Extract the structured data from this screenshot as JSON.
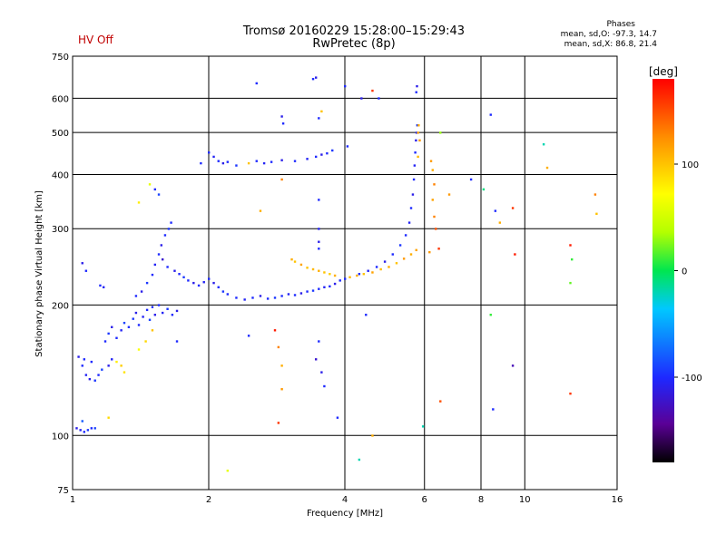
{
  "status": {
    "hv_label": "HV Off"
  },
  "header": {
    "title_line1": "Tromsø 20160229 15:28:00–15:29:43",
    "title_line2": "RwPretec (8p)"
  },
  "phases_box": {
    "title": "Phases",
    "line_o": "mean, sd,O: -97.3, 14.7",
    "line_x": "mean, sd,X:  86.8, 21.4"
  },
  "colorbar": {
    "unit_label": "[deg]",
    "tick_labels": [
      "100",
      "0",
      "-100"
    ],
    "tick_values": [
      100,
      0,
      -100
    ],
    "range": [
      -180,
      180
    ]
  },
  "chart_data": {
    "type": "scatter",
    "title": "Tromsø 20160229 15:28:00–15:29:43",
    "subtitle": "RwPretec (8p)",
    "xlabel": "Frequency [MHz]",
    "ylabel": "Stationary phase Virtual Height [km]",
    "x_scale": "log",
    "y_scale": "log",
    "xlim": [
      1,
      16
    ],
    "ylim": [
      75,
      750
    ],
    "x_ticks": [
      1,
      2,
      4,
      6,
      8,
      10,
      16
    ],
    "x_tick_labels": [
      "1",
      "2",
      "4",
      "6",
      "8",
      "10",
      "16"
    ],
    "y_ticks": [
      75,
      100,
      200,
      300,
      400,
      500,
      600,
      750
    ],
    "y_tick_labels": [
      "75",
      "100",
      "200",
      "300",
      "400",
      "500",
      "600",
      "750"
    ],
    "grid": true,
    "color_scale": "phase in degrees (rainbow, -180 to 180)",
    "points": [
      {
        "f": 1.02,
        "h": 104,
        "p": -110
      },
      {
        "f": 1.04,
        "h": 103,
        "p": -105
      },
      {
        "f": 1.06,
        "h": 102,
        "p": -100
      },
      {
        "f": 1.08,
        "h": 103,
        "p": -95
      },
      {
        "f": 1.1,
        "h": 104,
        "p": -100
      },
      {
        "f": 1.12,
        "h": 104,
        "p": -90
      },
      {
        "f": 1.05,
        "h": 108,
        "p": -80
      },
      {
        "f": 1.03,
        "h": 152,
        "p": -110
      },
      {
        "f": 1.05,
        "h": 145,
        "p": -100
      },
      {
        "f": 1.07,
        "h": 138,
        "p": -105
      },
      {
        "f": 1.09,
        "h": 135,
        "p": -110
      },
      {
        "f": 1.12,
        "h": 134,
        "p": -95
      },
      {
        "f": 1.14,
        "h": 138,
        "p": -100
      },
      {
        "f": 1.16,
        "h": 142,
        "p": -90
      },
      {
        "f": 1.1,
        "h": 148,
        "p": -100
      },
      {
        "f": 1.06,
        "h": 150,
        "p": -100
      },
      {
        "f": 1.2,
        "h": 145,
        "p": -110
      },
      {
        "f": 1.22,
        "h": 150,
        "p": -105
      },
      {
        "f": 1.18,
        "h": 165,
        "p": -100
      },
      {
        "f": 1.2,
        "h": 172,
        "p": -95
      },
      {
        "f": 1.22,
        "h": 178,
        "p": -110
      },
      {
        "f": 1.25,
        "h": 168,
        "p": -100
      },
      {
        "f": 1.28,
        "h": 175,
        "p": -105
      },
      {
        "f": 1.3,
        "h": 182,
        "p": -90
      },
      {
        "f": 1.33,
        "h": 178,
        "p": -100
      },
      {
        "f": 1.36,
        "h": 186,
        "p": -95
      },
      {
        "f": 1.38,
        "h": 192,
        "p": -110
      },
      {
        "f": 1.4,
        "h": 180,
        "p": -100
      },
      {
        "f": 1.43,
        "h": 188,
        "p": -105
      },
      {
        "f": 1.46,
        "h": 195,
        "p": -100
      },
      {
        "f": 1.48,
        "h": 185,
        "p": -90
      },
      {
        "f": 1.5,
        "h": 198,
        "p": -100
      },
      {
        "f": 1.52,
        "h": 190,
        "p": -110
      },
      {
        "f": 1.55,
        "h": 200,
        "p": -100
      },
      {
        "f": 1.58,
        "h": 192,
        "p": -105
      },
      {
        "f": 1.62,
        "h": 196,
        "p": -95
      },
      {
        "f": 1.66,
        "h": 190,
        "p": -100
      },
      {
        "f": 1.7,
        "h": 194,
        "p": -110
      },
      {
        "f": 1.25,
        "h": 148,
        "p": 80
      },
      {
        "f": 1.28,
        "h": 145,
        "p": 95
      },
      {
        "f": 1.3,
        "h": 140,
        "p": 85
      },
      {
        "f": 1.4,
        "h": 158,
        "p": 70
      },
      {
        "f": 1.45,
        "h": 165,
        "p": 90
      },
      {
        "f": 1.5,
        "h": 175,
        "p": 100
      },
      {
        "f": 1.2,
        "h": 110,
        "p": 90
      },
      {
        "f": 1.05,
        "h": 250,
        "p": -110
      },
      {
        "f": 1.07,
        "h": 240,
        "p": -100
      },
      {
        "f": 1.15,
        "h": 222,
        "p": -100
      },
      {
        "f": 1.17,
        "h": 220,
        "p": -105
      },
      {
        "f": 1.38,
        "h": 210,
        "p": -100
      },
      {
        "f": 1.42,
        "h": 215,
        "p": -110
      },
      {
        "f": 1.46,
        "h": 225,
        "p": -95
      },
      {
        "f": 1.5,
        "h": 235,
        "p": -100
      },
      {
        "f": 1.52,
        "h": 248,
        "p": -105
      },
      {
        "f": 1.55,
        "h": 262,
        "p": -100
      },
      {
        "f": 1.57,
        "h": 275,
        "p": -110
      },
      {
        "f": 1.6,
        "h": 290,
        "p": -100
      },
      {
        "f": 1.63,
        "h": 300,
        "p": -95
      },
      {
        "f": 1.65,
        "h": 310,
        "p": -100
      },
      {
        "f": 1.58,
        "h": 255,
        "p": -120
      },
      {
        "f": 1.62,
        "h": 245,
        "p": -100
      },
      {
        "f": 1.68,
        "h": 240,
        "p": -110
      },
      {
        "f": 1.72,
        "h": 236,
        "p": -100
      },
      {
        "f": 1.76,
        "h": 232,
        "p": -95
      },
      {
        "f": 1.8,
        "h": 228,
        "p": -100
      },
      {
        "f": 1.85,
        "h": 225,
        "p": -110
      },
      {
        "f": 1.9,
        "h": 222,
        "p": -100
      },
      {
        "f": 1.95,
        "h": 226,
        "p": -105
      },
      {
        "f": 2,
        "h": 230,
        "p": -100
      },
      {
        "f": 2.05,
        "h": 225,
        "p": -110
      },
      {
        "f": 2.1,
        "h": 220,
        "p": -100
      },
      {
        "f": 2.15,
        "h": 215,
        "p": -95
      },
      {
        "f": 2.2,
        "h": 212,
        "p": -100
      },
      {
        "f": 1.4,
        "h": 345,
        "p": 80
      },
      {
        "f": 1.48,
        "h": 380,
        "p": 60
      },
      {
        "f": 1.52,
        "h": 370,
        "p": -100
      },
      {
        "f": 1.55,
        "h": 360,
        "p": -90
      },
      {
        "f": 1.7,
        "h": 165,
        "p": -100
      },
      {
        "f": 2.3,
        "h": 208,
        "p": -100
      },
      {
        "f": 2.4,
        "h": 206,
        "p": -105
      },
      {
        "f": 2.5,
        "h": 208,
        "p": -100
      },
      {
        "f": 2.6,
        "h": 210,
        "p": -110
      },
      {
        "f": 2.7,
        "h": 207,
        "p": -100
      },
      {
        "f": 2.8,
        "h": 208,
        "p": -95
      },
      {
        "f": 2.9,
        "h": 210,
        "p": -100
      },
      {
        "f": 3,
        "h": 212,
        "p": -105
      },
      {
        "f": 3.1,
        "h": 211,
        "p": -100
      },
      {
        "f": 3.2,
        "h": 213,
        "p": -110
      },
      {
        "f": 3.3,
        "h": 215,
        "p": -100
      },
      {
        "f": 3.4,
        "h": 216,
        "p": -95
      },
      {
        "f": 3.5,
        "h": 218,
        "p": -100
      },
      {
        "f": 3.6,
        "h": 220,
        "p": -105
      },
      {
        "f": 3.7,
        "h": 221,
        "p": -100
      },
      {
        "f": 3.8,
        "h": 224,
        "p": -110
      },
      {
        "f": 3.9,
        "h": 228,
        "p": -100
      },
      {
        "f": 4,
        "h": 230,
        "p": -100
      },
      {
        "f": 3.05,
        "h": 255,
        "p": 110
      },
      {
        "f": 3.1,
        "h": 252,
        "p": 100
      },
      {
        "f": 3.2,
        "h": 248,
        "p": 115
      },
      {
        "f": 3.3,
        "h": 244,
        "p": 100
      },
      {
        "f": 3.4,
        "h": 242,
        "p": 105
      },
      {
        "f": 3.5,
        "h": 240,
        "p": 110
      },
      {
        "f": 3.6,
        "h": 238,
        "p": 100
      },
      {
        "f": 3.7,
        "h": 236,
        "p": 95
      },
      {
        "f": 3.8,
        "h": 234,
        "p": 110
      },
      {
        "f": 4.1,
        "h": 232,
        "p": 105
      },
      {
        "f": 4.25,
        "h": 234,
        "p": 110
      },
      {
        "f": 4.4,
        "h": 236,
        "p": 100
      },
      {
        "f": 4.6,
        "h": 238,
        "p": 115
      },
      {
        "f": 4.8,
        "h": 242,
        "p": 105
      },
      {
        "f": 5,
        "h": 245,
        "p": 110
      },
      {
        "f": 5.2,
        "h": 250,
        "p": 100
      },
      {
        "f": 5.4,
        "h": 256,
        "p": 120
      },
      {
        "f": 5.6,
        "h": 262,
        "p": 110
      },
      {
        "f": 5.75,
        "h": 268,
        "p": 115
      },
      {
        "f": 4.3,
        "h": 236,
        "p": -100
      },
      {
        "f": 4.5,
        "h": 240,
        "p": -105
      },
      {
        "f": 4.7,
        "h": 245,
        "p": -100
      },
      {
        "f": 4.9,
        "h": 252,
        "p": -110
      },
      {
        "f": 5.1,
        "h": 262,
        "p": -100
      },
      {
        "f": 5.3,
        "h": 275,
        "p": -95
      },
      {
        "f": 5.45,
        "h": 290,
        "p": -100
      },
      {
        "f": 5.55,
        "h": 310,
        "p": -105
      },
      {
        "f": 5.6,
        "h": 335,
        "p": -100
      },
      {
        "f": 5.65,
        "h": 360,
        "p": -110
      },
      {
        "f": 5.68,
        "h": 390,
        "p": -100
      },
      {
        "f": 5.7,
        "h": 420,
        "p": -105
      },
      {
        "f": 5.72,
        "h": 450,
        "p": -100
      },
      {
        "f": 5.74,
        "h": 480,
        "p": -110
      },
      {
        "f": 5.76,
        "h": 500,
        "p": -100
      },
      {
        "f": 5.78,
        "h": 520,
        "p": -95
      },
      {
        "f": 5.75,
        "h": 620,
        "p": -100
      },
      {
        "f": 5.77,
        "h": 640,
        "p": -110
      },
      {
        "f": 5.8,
        "h": 500,
        "p": 115
      },
      {
        "f": 5.82,
        "h": 520,
        "p": 110
      },
      {
        "f": 5.85,
        "h": 480,
        "p": 120
      },
      {
        "f": 5.8,
        "h": 440,
        "p": 105
      },
      {
        "f": 2,
        "h": 450,
        "p": -100
      },
      {
        "f": 2.05,
        "h": 440,
        "p": -105
      },
      {
        "f": 2.1,
        "h": 430,
        "p": -100
      },
      {
        "f": 2.15,
        "h": 425,
        "p": -110
      },
      {
        "f": 2.2,
        "h": 428,
        "p": -100
      },
      {
        "f": 2.3,
        "h": 420,
        "p": -95
      },
      {
        "f": 2.45,
        "h": 425,
        "p": 100
      },
      {
        "f": 2.55,
        "h": 430,
        "p": -100
      },
      {
        "f": 2.65,
        "h": 425,
        "p": -105
      },
      {
        "f": 2.75,
        "h": 428,
        "p": -100
      },
      {
        "f": 2.9,
        "h": 432,
        "p": -110
      },
      {
        "f": 3.1,
        "h": 430,
        "p": -100
      },
      {
        "f": 3.3,
        "h": 435,
        "p": -105
      },
      {
        "f": 3.45,
        "h": 440,
        "p": -100
      },
      {
        "f": 3.55,
        "h": 445,
        "p": -110
      },
      {
        "f": 3.65,
        "h": 448,
        "p": -100
      },
      {
        "f": 3.75,
        "h": 455,
        "p": -95
      },
      {
        "f": 1.92,
        "h": 425,
        "p": -100
      },
      {
        "f": 2.55,
        "h": 650,
        "p": -100
      },
      {
        "f": 2.9,
        "h": 545,
        "p": -110
      },
      {
        "f": 2.92,
        "h": 525,
        "p": -100
      },
      {
        "f": 3.4,
        "h": 665,
        "p": -100
      },
      {
        "f": 3.45,
        "h": 670,
        "p": -110
      },
      {
        "f": 3.5,
        "h": 540,
        "p": -100
      },
      {
        "f": 3.55,
        "h": 560,
        "p": 100
      },
      {
        "f": 4,
        "h": 640,
        "p": -100
      },
      {
        "f": 4.35,
        "h": 600,
        "p": -110
      },
      {
        "f": 4.6,
        "h": 625,
        "p": 160
      },
      {
        "f": 4.75,
        "h": 600,
        "p": -100
      },
      {
        "f": 4.05,
        "h": 465,
        "p": -100
      },
      {
        "f": 2.6,
        "h": 330,
        "p": 110
      },
      {
        "f": 2.9,
        "h": 390,
        "p": 130
      },
      {
        "f": 3.5,
        "h": 350,
        "p": -100
      },
      {
        "f": 3.5,
        "h": 300,
        "p": -105
      },
      {
        "f": 3.5,
        "h": 280,
        "p": -110
      },
      {
        "f": 3.5,
        "h": 270,
        "p": -100
      },
      {
        "f": 6.2,
        "h": 430,
        "p": 120
      },
      {
        "f": 6.25,
        "h": 410,
        "p": 110
      },
      {
        "f": 6.3,
        "h": 380,
        "p": 130
      },
      {
        "f": 6.25,
        "h": 350,
        "p": 115
      },
      {
        "f": 6.3,
        "h": 320,
        "p": 130
      },
      {
        "f": 6.35,
        "h": 300,
        "p": 150
      },
      {
        "f": 6.45,
        "h": 270,
        "p": 160
      },
      {
        "f": 6.8,
        "h": 360,
        "p": 120
      },
      {
        "f": 6.5,
        "h": 500,
        "p": 30
      },
      {
        "f": 6.15,
        "h": 265,
        "p": 120
      },
      {
        "f": 7.6,
        "h": 390,
        "p": -100
      },
      {
        "f": 8.1,
        "h": 370,
        "p": -10
      },
      {
        "f": 8.6,
        "h": 330,
        "p": -100
      },
      {
        "f": 8.8,
        "h": 310,
        "p": 110
      },
      {
        "f": 8.4,
        "h": 550,
        "p": -100
      },
      {
        "f": 9.4,
        "h": 335,
        "p": 160
      },
      {
        "f": 9.5,
        "h": 262,
        "p": 170
      },
      {
        "f": 11,
        "h": 470,
        "p": -20
      },
      {
        "f": 11.2,
        "h": 415,
        "p": 110
      },
      {
        "f": 12.6,
        "h": 275,
        "p": 170
      },
      {
        "f": 12.7,
        "h": 255,
        "p": 10
      },
      {
        "f": 12.6,
        "h": 225,
        "p": 20
      },
      {
        "f": 14.3,
        "h": 360,
        "p": 130
      },
      {
        "f": 14.4,
        "h": 325,
        "p": 100
      },
      {
        "f": 12.6,
        "h": 125,
        "p": 160
      },
      {
        "f": 8.4,
        "h": 190,
        "p": 10
      },
      {
        "f": 9.4,
        "h": 145,
        "p": -130
      },
      {
        "f": 8.5,
        "h": 115,
        "p": -100
      },
      {
        "f": 6.5,
        "h": 120,
        "p": 150
      },
      {
        "f": 2.8,
        "h": 175,
        "p": 170
      },
      {
        "f": 2.85,
        "h": 160,
        "p": 130
      },
      {
        "f": 2.9,
        "h": 145,
        "p": 110
      },
      {
        "f": 2.9,
        "h": 128,
        "p": 120
      },
      {
        "f": 2.85,
        "h": 107,
        "p": 160
      },
      {
        "f": 3.5,
        "h": 165,
        "p": -100
      },
      {
        "f": 3.55,
        "h": 140,
        "p": -110
      },
      {
        "f": 3.45,
        "h": 150,
        "p": -120
      },
      {
        "f": 3.6,
        "h": 130,
        "p": -100
      },
      {
        "f": 3.85,
        "h": 110,
        "p": -100
      },
      {
        "f": 2.45,
        "h": 170,
        "p": -100
      },
      {
        "f": 4.45,
        "h": 190,
        "p": -100
      },
      {
        "f": 4.3,
        "h": 88,
        "p": -20
      },
      {
        "f": 4.6,
        "h": 100,
        "p": 110
      },
      {
        "f": 5.95,
        "h": 105,
        "p": -20
      },
      {
        "f": 2.2,
        "h": 83,
        "p": 60
      }
    ]
  }
}
